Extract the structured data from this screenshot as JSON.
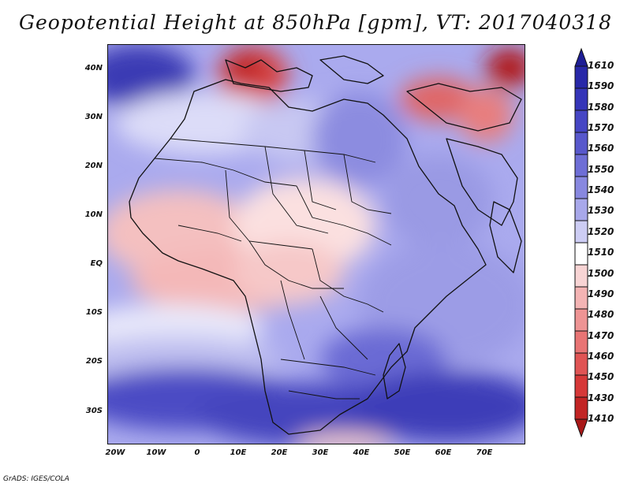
{
  "title": "Geopotential Height at 850hPa [gpm], VT: 2017040318",
  "credit": "GrADS: IGES/COLA",
  "map": {
    "variable": "Geopotential Height",
    "level": "850hPa",
    "units": "gpm",
    "valid_time": "2017040318",
    "lat_labels": [
      "40N",
      "30N",
      "20N",
      "10N",
      "EQ",
      "10S",
      "20S",
      "30S"
    ],
    "lon_labels": [
      "20W",
      "10W",
      "0",
      "10E",
      "20E",
      "30E",
      "40E",
      "50E",
      "60E",
      "70E"
    ],
    "background_color": "#aaaaee"
  },
  "colorbar": {
    "labels": [
      "1610",
      "1590",
      "1580",
      "1570",
      "1560",
      "1550",
      "1540",
      "1530",
      "1520",
      "1510",
      "1500",
      "1490",
      "1480",
      "1470",
      "1460",
      "1450",
      "1430",
      "1410"
    ],
    "colors": [
      "#1e1e96",
      "#2828a8",
      "#3535b8",
      "#4646c4",
      "#5858cc",
      "#6e6ed6",
      "#8888e0",
      "#a8a8ea",
      "#cdcdf4",
      "#ffffff",
      "#f8d4d4",
      "#f4b4b4",
      "#ee9494",
      "#e87474",
      "#e05454",
      "#d63838",
      "#c22424",
      "#a81818"
    ]
  }
}
